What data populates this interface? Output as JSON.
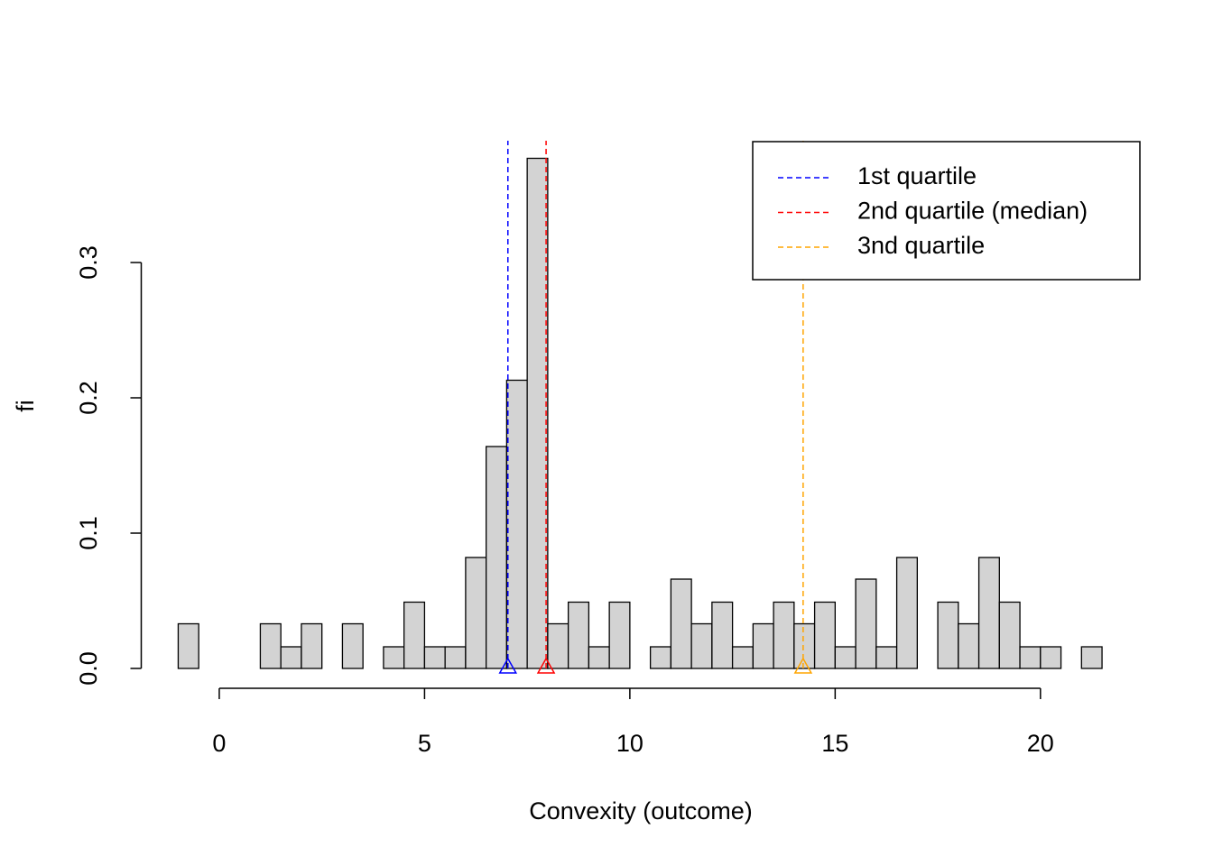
{
  "chart_data": {
    "type": "histogram",
    "x_label": "Convexity (outcome)",
    "y_label": "fi",
    "bins": [
      -1,
      -0.5,
      0,
      0.5,
      1,
      1.5,
      2,
      2.5,
      3,
      3.5,
      4,
      4.5,
      5,
      5.5,
      6,
      6.5,
      7,
      7.5,
      8,
      8.5,
      9,
      9.5,
      10,
      10.5,
      11,
      11.5,
      12,
      12.5,
      13,
      13.5,
      14,
      14.5,
      15,
      15.5,
      16,
      16.5,
      17,
      17.5,
      18,
      18.5,
      19,
      19.5,
      20,
      20.5,
      21,
      21.5
    ],
    "values": [
      0.033,
      0,
      0,
      0,
      0.033,
      0.016,
      0.033,
      0,
      0.033,
      0,
      0.016,
      0.049,
      0.016,
      0.016,
      0.082,
      0.164,
      0.213,
      0.377,
      0.033,
      0.049,
      0.016,
      0.049,
      0,
      0.016,
      0.066,
      0.033,
      0.049,
      0.016,
      0.033,
      0.049,
      0.033,
      0.049,
      0.016,
      0.066,
      0.016,
      0.082,
      0,
      0.049,
      0.033,
      0.082,
      0.049,
      0.016,
      0.016,
      0,
      0.016
    ],
    "color": "#d3d3d3",
    "xlim": [
      -1.9,
      22.4
    ],
    "ylim": [
      0,
      0.39
    ],
    "xticks": [
      0,
      5,
      10,
      15,
      20
    ],
    "yticks": [
      {
        "value": 0,
        "label": "0.0"
      },
      0.1,
      0.2,
      0.3
    ],
    "quartiles": [
      {
        "name": "1st quartile",
        "color": "#0000ff",
        "value": 7.03
      },
      {
        "name": "2nd quartile (median)",
        "color": "#ff0000",
        "value": 7.96
      },
      {
        "name": "3nd quartile",
        "color": "#ffa500",
        "value": 14.22
      }
    ],
    "legend": "topright"
  }
}
